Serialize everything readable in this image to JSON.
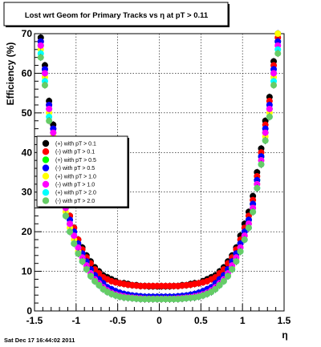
{
  "footer": {
    "timestamp": "Sat Dec 17 16:44:02 2011"
  },
  "chart_data": {
    "type": "scatter",
    "title": "Lost wrt Geom for Primary Tracks vs    η at pT > 0.11",
    "xlabel": "η",
    "ylabel": "Efficiency (%)",
    "xlim": [
      -1.5,
      1.5
    ],
    "ylim": [
      0,
      70
    ],
    "grid": true,
    "legend_position": "left",
    "x_ticks": [
      "-1.5",
      "-1",
      "-0.5",
      "0",
      "0.5",
      "1",
      "1.5"
    ],
    "y_ticks": [
      "0",
      "10",
      "20",
      "30",
      "40",
      "50",
      "60",
      "70"
    ],
    "eta": [
      -1.425,
      -1.375,
      -1.325,
      -1.275,
      -1.225,
      -1.175,
      -1.125,
      -1.075,
      -1.025,
      -0.975,
      -0.925,
      -0.875,
      -0.825,
      -0.775,
      -0.725,
      -0.675,
      -0.625,
      -0.575,
      -0.525,
      -0.475,
      -0.425,
      -0.375,
      -0.325,
      -0.275,
      -0.225,
      -0.175,
      -0.125,
      -0.075,
      -0.025,
      0.025,
      0.075,
      0.125,
      0.175,
      0.225,
      0.275,
      0.325,
      0.375,
      0.425,
      0.475,
      0.525,
      0.575,
      0.625,
      0.675,
      0.725,
      0.775,
      0.825,
      0.875,
      0.925,
      0.975,
      1.025,
      1.075,
      1.125,
      1.175,
      1.225,
      1.275,
      1.325,
      1.375,
      1.425
    ],
    "series": [
      {
        "name": "(+) with pT > 0.1",
        "color": "#000000",
        "values": [
          69,
          62,
          53,
          47,
          40,
          34,
          28,
          24,
          21,
          18,
          16,
          14,
          12.5,
          11,
          10,
          9,
          8.5,
          8,
          7.5,
          7,
          7,
          6.8,
          6.5,
          6.5,
          6.3,
          6.3,
          6.2,
          6.2,
          6.2,
          6.2,
          6.2,
          6.2,
          6.3,
          6.3,
          6.5,
          6.5,
          6.8,
          7,
          7,
          7.5,
          8,
          8.5,
          9,
          10,
          11,
          12.5,
          14,
          16,
          19,
          22,
          25,
          29,
          35,
          41,
          48,
          54,
          63,
          70
        ]
      },
      {
        "name": "(-) with pT > 0.1",
        "color": "#ff0000",
        "values": [
          68,
          61,
          52,
          46,
          39,
          33,
          27,
          24,
          21,
          18,
          15.5,
          13.5,
          12,
          10.5,
          9.5,
          8.5,
          8,
          7.5,
          7.2,
          7,
          6.8,
          6.6,
          6.5,
          6.4,
          6.3,
          6.3,
          6.3,
          6.3,
          6.3,
          6.3,
          6.3,
          6.3,
          6.3,
          6.3,
          6.4,
          6.5,
          6.6,
          6.8,
          7,
          7.2,
          7.5,
          8,
          8.5,
          9.5,
          10.5,
          12,
          13.5,
          15.5,
          18,
          21,
          24,
          28,
          34,
          40,
          47,
          53,
          62,
          69
        ]
      },
      {
        "name": "(+) with pT > 0.5",
        "color": "#00ff00",
        "values": [
          67,
          60,
          51,
          45,
          38,
          32,
          26,
          22,
          19,
          16,
          14,
          12,
          10,
          8.5,
          7.5,
          6.5,
          5.8,
          5.2,
          4.8,
          4.5,
          4.2,
          4,
          3.8,
          3.7,
          3.6,
          3.5,
          3.5,
          3.5,
          3.5,
          3.5,
          3.5,
          3.5,
          3.5,
          3.6,
          3.7,
          3.8,
          4,
          4.2,
          4.5,
          4.8,
          5.2,
          5.8,
          6.5,
          7.5,
          8.5,
          10,
          12,
          14,
          17,
          20,
          23,
          27,
          33,
          39,
          45,
          51,
          60,
          68
        ]
      },
      {
        "name": "(-) with pT > 0.5",
        "color": "#0000ff",
        "values": [
          68,
          61,
          52,
          46,
          39,
          33,
          27,
          23,
          20,
          17,
          14.5,
          12.5,
          10.5,
          9,
          8,
          7,
          6,
          5.5,
          5,
          4.6,
          4.3,
          4.1,
          3.9,
          3.8,
          3.7,
          3.6,
          3.6,
          3.6,
          3.6,
          3.6,
          3.6,
          3.6,
          3.6,
          3.7,
          3.8,
          3.9,
          4.1,
          4.3,
          4.6,
          5,
          5.5,
          6,
          7,
          8,
          9,
          10.5,
          12.5,
          14.5,
          17,
          20,
          23,
          27,
          33,
          39,
          46,
          52,
          61,
          68
        ]
      },
      {
        "name": "(+) with pT > 1.0",
        "color": "#ffff00",
        "values": [
          66,
          59,
          50,
          44,
          37,
          31,
          25,
          21,
          18,
          15,
          13,
          11,
          9,
          7.8,
          6.8,
          5.8,
          5,
          4.5,
          4.1,
          3.8,
          3.6,
          3.4,
          3.3,
          3.2,
          3.1,
          3,
          3,
          3,
          3,
          3,
          3,
          3,
          3,
          3.1,
          3.2,
          3.3,
          3.4,
          3.6,
          3.8,
          4.1,
          4.5,
          5,
          5.8,
          6.8,
          7.8,
          9,
          11,
          13,
          16,
          19,
          22,
          26,
          32,
          38,
          44,
          50,
          59,
          70
        ]
      },
      {
        "name": "(-) with pT > 1.0",
        "color": "#ff00ff",
        "values": [
          67,
          60,
          51,
          45,
          38,
          32,
          26,
          22,
          19,
          16,
          13.5,
          11.5,
          9.5,
          8,
          7,
          6,
          5.2,
          4.6,
          4.2,
          3.9,
          3.7,
          3.5,
          3.4,
          3.3,
          3.2,
          3.1,
          3.1,
          3.1,
          3.1,
          3.1,
          3.1,
          3.1,
          3.1,
          3.2,
          3.3,
          3.4,
          3.5,
          3.7,
          3.9,
          4.2,
          4.6,
          5.2,
          6,
          7,
          8,
          9.5,
          11.5,
          13.5,
          16,
          19,
          22,
          26,
          32,
          38,
          45,
          51,
          60,
          67
        ]
      },
      {
        "name": "(+) with pT > 2.0",
        "color": "#00ffff",
        "values": [
          65,
          58,
          49,
          43,
          36,
          30,
          24,
          20,
          17,
          14.5,
          12.5,
          10.5,
          8.8,
          7.5,
          6.5,
          5.5,
          4.8,
          4.3,
          3.9,
          3.6,
          3.4,
          3.3,
          3.2,
          3.1,
          3,
          3,
          3,
          3,
          3,
          3,
          3,
          3,
          3,
          3,
          3.1,
          3.2,
          3.3,
          3.4,
          3.6,
          3.9,
          4.3,
          4.8,
          5.5,
          6.5,
          7.5,
          8.8,
          10.5,
          12.5,
          15,
          18,
          21,
          25,
          31,
          37,
          43,
          49,
          58,
          66
        ]
      },
      {
        "name": "(-) with pT > 2.0",
        "color": "#66cc66",
        "values": [
          64,
          57,
          48,
          42,
          35,
          29,
          24,
          20,
          17,
          14.5,
          12.5,
          10.5,
          8.8,
          7.5,
          6.5,
          5.5,
          4.8,
          4.3,
          3.9,
          3.6,
          3.4,
          3.3,
          3.2,
          3.1,
          3,
          3,
          3,
          3,
          3,
          3,
          3,
          3,
          3,
          3,
          3.1,
          3.2,
          3.3,
          3.4,
          3.6,
          3.9,
          4.3,
          4.8,
          5.5,
          6.5,
          7.5,
          8.8,
          10.5,
          12.5,
          15,
          18,
          21,
          25,
          31,
          37,
          43,
          49,
          57,
          65
        ]
      }
    ]
  }
}
